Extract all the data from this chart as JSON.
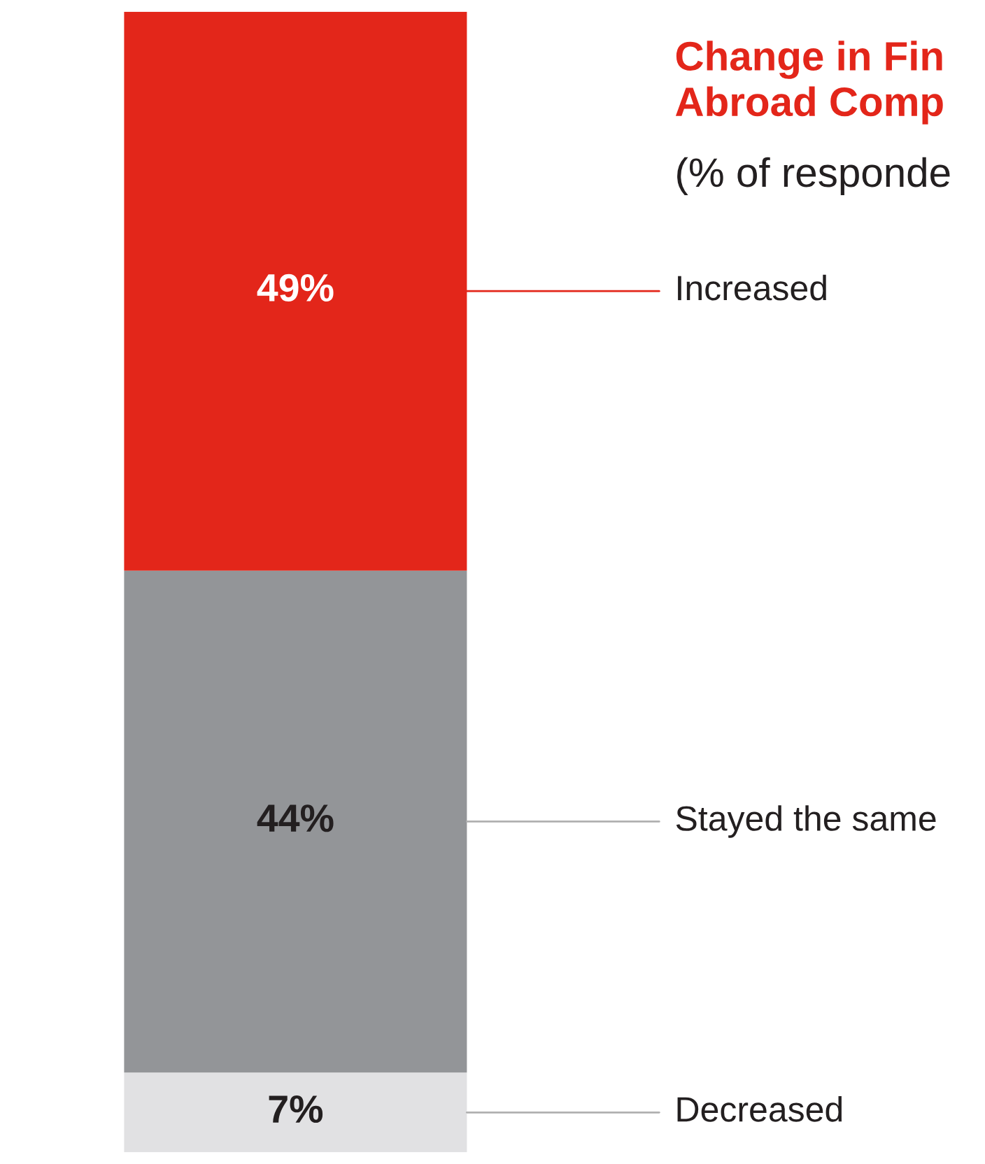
{
  "chart_data": {
    "type": "bar",
    "stacked": true,
    "title": "Change in Fin\nAbroad Comp",
    "subtitle": "(% of responde",
    "categories": [
      null
    ],
    "series": [
      {
        "name": "Decreased",
        "color": "#e1e1e3",
        "values": [
          7
        ],
        "value_labels": [
          "7%"
        ]
      },
      {
        "name": "Stayed the same",
        "color": "#939598",
        "values": [
          44
        ],
        "value_labels": [
          "44%"
        ]
      },
      {
        "name": "Increased",
        "color": "#e3261a",
        "values": [
          49
        ],
        "value_labels": [
          "49%"
        ]
      }
    ],
    "legend": false
  }
}
